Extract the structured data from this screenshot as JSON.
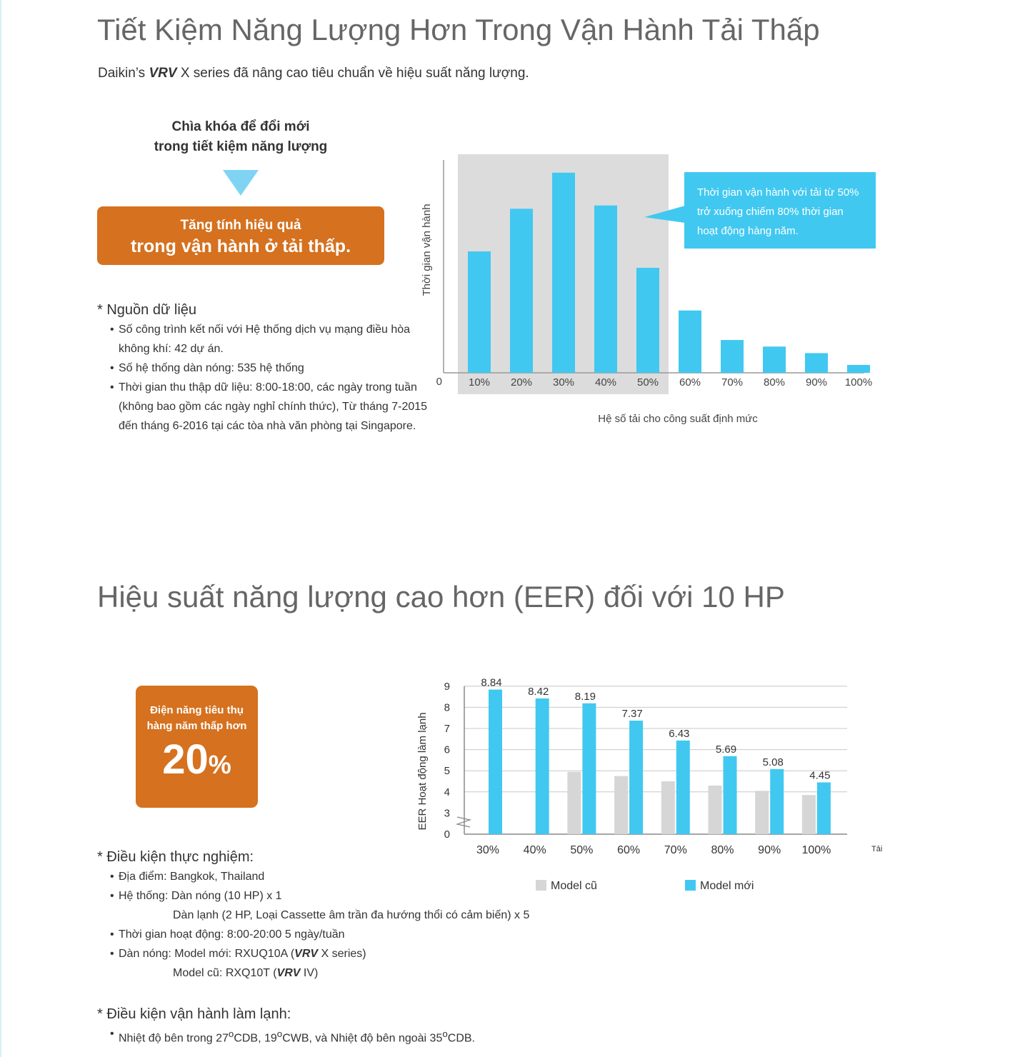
{
  "section1": {
    "title": "Tiết Kiệm Năng Lượng Hơn Trong Vận Hành Tải Thấp",
    "intro": {
      "prefix": "Daikin’s ",
      "brand": "VRV",
      "suffix": " X series đã nâng cao tiêu chuẩn về hiệu suất năng lượng."
    },
    "key_title_line1": "Chìa khóa để đổi mới",
    "key_title_line2": "trong tiết kiệm năng lượng",
    "box_line1": "Tăng tính hiệu quả",
    "box_line2": "trong vận hành ở tải thấp.",
    "notes": {
      "heading": "* Nguồn dữ liệu",
      "items": [
        "Số công trình kết nối với Hệ thống dịch vụ mạng điều hòa không khí: 42 dự án.",
        "Số hệ thống dàn nóng: 535 hệ thống",
        "Thời gian thu thập dữ liệu: 8:00-18:00, các ngày trong tuần (không bao gồm các ngày nghỉ chính thức), Từ tháng 7-2015 đến tháng 6-2016 tại các tòa nhà văn phòng tại Singapore."
      ]
    }
  },
  "section2": {
    "title": "Hiệu suất năng lượng cao hơn (EER) đối với 10 HP",
    "badge_line1": "Điện năng tiêu thụ",
    "badge_line2": "hàng năm thấp hơn",
    "badge_value": "20",
    "badge_unit": "%",
    "conditions": {
      "heading": "* Điều kiện thực nghiệm:",
      "location": "Địa điểm: Bangkok, Thailand",
      "system_line1": "Hệ thống: Dàn nóng (10 HP) x 1",
      "system_line2": "Dàn lạnh (2 HP, Loại Cassette âm trần đa hướng thổi có cảm biến) x 5",
      "hours": "Thời gian hoạt động: 8:00-20:00 5 ngày/tuần",
      "outdoor_new_prefix": "Dàn nóng: Model mới:  RXUQ10A (",
      "outdoor_new_brand": "VRV",
      "outdoor_new_suffix": " X series)",
      "outdoor_old_prefix": "Model cũ: RXQ10T (",
      "outdoor_old_brand": "VRV",
      "outdoor_old_suffix": " IV)"
    },
    "cooling": {
      "heading": "* Điều kiện vận hành làm lạnh:",
      "item_a": "Nhiệt độ bên trong 27",
      "item_b": "CDB, 19",
      "item_c": "CWB, và Nhiệt độ bên ngoài 35",
      "item_d": "CDB.",
      "degree": "o"
    }
  },
  "colors": {
    "bar_blue": "#41c8f0",
    "bar_gray": "#d6d6d6",
    "accent_orange": "#d5711f",
    "highlight_gray": "#dcdcdc",
    "arrow_blue": "#7fd4f4"
  },
  "chart_data": [
    {
      "type": "bar",
      "categories": [
        "10%",
        "20%",
        "30%",
        "40%",
        "50%",
        "60%",
        "70%",
        "80%",
        "90%",
        "100%"
      ],
      "values": [
        18.5,
        25,
        30.5,
        25.5,
        16,
        9.5,
        5,
        4,
        3,
        1.2
      ],
      "zero_label": "0",
      "xlabel": "Hệ số tải cho công suất định mức",
      "ylabel": "Thời gian vận hành",
      "highlight_range": [
        "10%",
        "50%"
      ],
      "callout": "Thời gian vận hành với tải từ 50% trở xuống chiếm 80% thời gian hoạt động hàng năm.",
      "callout_lines": [
        "Thời gian vận hành với tải từ 50%",
        "trở xuống chiếm 80% thời gian",
        "hoạt động hàng năm."
      ],
      "ylim": [
        0,
        32
      ],
      "grid": false
    },
    {
      "type": "bar",
      "categories": [
        "30%",
        "40%",
        "50%",
        "60%",
        "70%",
        "80%",
        "90%",
        "100%"
      ],
      "series": [
        {
          "name": "Model cũ",
          "values": [
            null,
            null,
            4.95,
            4.75,
            4.5,
            4.3,
            4.05,
            3.85
          ]
        },
        {
          "name": "Model mới",
          "values": [
            8.84,
            8.42,
            8.19,
            7.37,
            6.43,
            5.69,
            5.08,
            4.45
          ]
        }
      ],
      "data_labels": [
        "8.84",
        "8.42",
        "8.19",
        "7.37",
        "6.43",
        "5.69",
        "5.08",
        "4.45"
      ],
      "yticks": [
        "0",
        "3",
        "4",
        "5",
        "6",
        "7",
        "8",
        "9"
      ],
      "ylabel": "EER Hoạt động làm lạnh",
      "xlabel": "Tải",
      "ylim": [
        0,
        9
      ],
      "axis_break": true,
      "grid": true,
      "legend_position": "bottom"
    }
  ]
}
